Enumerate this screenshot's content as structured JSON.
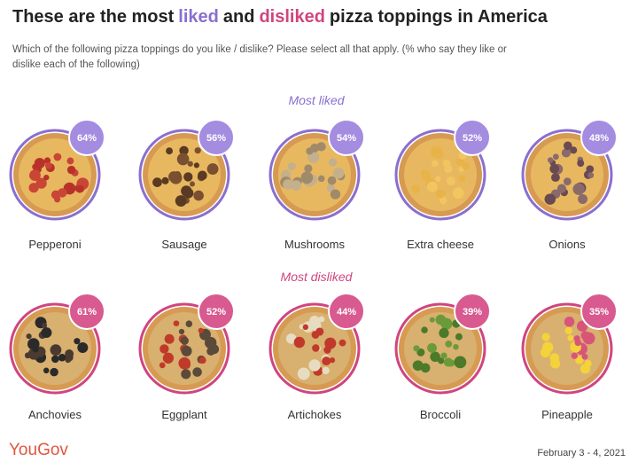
{
  "header": {
    "title_parts": [
      "These are the most",
      "liked",
      "and",
      "disliked",
      "pizza toppings in America"
    ],
    "subtitle": "Which of the following pizza toppings do you like / dislike? Please select all that apply. (% who say they like or dislike each of the following)"
  },
  "liked": {
    "heading": "Most liked",
    "items": [
      {
        "name": "Pepperoni",
        "percent": "64%"
      },
      {
        "name": "Sausage",
        "percent": "56%"
      },
      {
        "name": "Mushrooms",
        "percent": "54%"
      },
      {
        "name": "Extra cheese",
        "percent": "52%"
      },
      {
        "name": "Onions",
        "percent": "48%"
      }
    ]
  },
  "disliked": {
    "heading": "Most disliked",
    "items": [
      {
        "name": "Anchovies",
        "percent": "61%"
      },
      {
        "name": "Eggplant",
        "percent": "52%"
      },
      {
        "name": "Artichokes",
        "percent": "44%"
      },
      {
        "name": "Broccoli",
        "percent": "39%"
      },
      {
        "name": "Pineapple",
        "percent": "35%"
      }
    ]
  },
  "footer": {
    "brand": "YouGov",
    "date": "February 3 - 4, 2021"
  }
}
